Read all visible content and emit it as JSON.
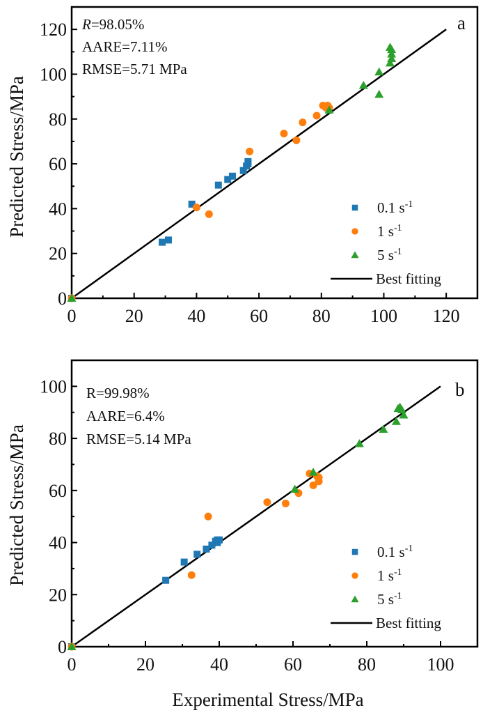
{
  "chart_data": [
    {
      "type": "scatter",
      "panel": "a",
      "xlabel": "",
      "ylabel": "Predicted Stress/MPa",
      "xlim": [
        0,
        130
      ],
      "ylim": [
        0,
        130
      ],
      "xticks": [
        0,
        20,
        40,
        60,
        80,
        100,
        120
      ],
      "yticks": [
        0,
        20,
        40,
        60,
        80,
        100,
        120
      ],
      "stats": [
        "R=98.05%",
        "AARE=7.11%",
        "RMSE=5.71 MPa"
      ],
      "stat_r_label": "R",
      "stat_r_value": "=98.05%",
      "legend_position": "bottom-right",
      "fit_line": {
        "name": "Best fitting",
        "from": [
          0,
          0
        ],
        "to": [
          120,
          120
        ],
        "color": "#000000"
      },
      "series": [
        {
          "name": "0.1 s-1",
          "label_base": "0.1 s",
          "label_sup": "-1",
          "marker": "square",
          "color": "#1f77b4",
          "points": [
            [
              0,
              0
            ],
            [
              29,
              25
            ],
            [
              31,
              26
            ],
            [
              38.5,
              42
            ],
            [
              47,
              50.5
            ],
            [
              50,
              53
            ],
            [
              51.5,
              54.5
            ],
            [
              55,
              57
            ],
            [
              56,
              59
            ],
            [
              56.5,
              60
            ],
            [
              56.5,
              61
            ]
          ]
        },
        {
          "name": "1 s-1",
          "label_base": "1 s",
          "label_sup": "-1",
          "marker": "circle",
          "color": "#ff7f0e",
          "points": [
            [
              0,
              0
            ],
            [
              40,
              40.5
            ],
            [
              44,
              37.5
            ],
            [
              57,
              65.5
            ],
            [
              68,
              73.5
            ],
            [
              72,
              70.5
            ],
            [
              74,
              78.5
            ],
            [
              78.5,
              81.5
            ],
            [
              80.5,
              86
            ],
            [
              81.5,
              85
            ],
            [
              82,
              86
            ],
            [
              82.5,
              85
            ]
          ]
        },
        {
          "name": "5 s-1",
          "label_base": "5 s",
          "label_sup": "-1",
          "marker": "triangle",
          "color": "#2ca02c",
          "points": [
            [
              0,
              0
            ],
            [
              82.5,
              84
            ],
            [
              93.5,
              95
            ],
            [
              98.5,
              91
            ],
            [
              98.5,
              101
            ],
            [
              102,
              105
            ],
            [
              102.5,
              107
            ],
            [
              102.5,
              109
            ],
            [
              102.5,
              111
            ],
            [
              102,
              112
            ]
          ]
        }
      ]
    },
    {
      "type": "scatter",
      "panel": "b",
      "xlabel": "Experimental Stress/MPa",
      "ylabel": "Predicted Stress/MPa",
      "xlim": [
        0,
        110
      ],
      "ylim": [
        0,
        110
      ],
      "xticks": [
        0,
        20,
        40,
        60,
        80,
        100
      ],
      "yticks": [
        0,
        20,
        40,
        60,
        80,
        100
      ],
      "stats": [
        "R=99.98%",
        "AARE=6.4%",
        "RMSE=5.14 MPa"
      ],
      "stat_r_label": "R",
      "stat_r_value": "=99.98%",
      "legend_position": "bottom-right",
      "fit_line": {
        "name": "Best fitting",
        "from": [
          0,
          0
        ],
        "to": [
          100,
          100
        ],
        "color": "#000000"
      },
      "series": [
        {
          "name": "0.1 s-1",
          "label_base": "0.1 s",
          "label_sup": "-1",
          "marker": "square",
          "color": "#1f77b4",
          "points": [
            [
              0,
              0
            ],
            [
              25.5,
              25.5
            ],
            [
              30.5,
              32.5
            ],
            [
              34,
              35.5
            ],
            [
              36.5,
              37.5
            ],
            [
              38,
              39
            ],
            [
              39,
              40.5
            ],
            [
              39.5,
              41
            ],
            [
              40,
              41
            ],
            [
              39.5,
              40
            ]
          ]
        },
        {
          "name": "1 s-1",
          "label_base": "1 s",
          "label_sup": "-1",
          "marker": "circle",
          "color": "#ff7f0e",
          "points": [
            [
              0,
              0
            ],
            [
              32.5,
              27.5
            ],
            [
              37,
              50
            ],
            [
              53,
              55.5
            ],
            [
              58,
              55
            ],
            [
              61.5,
              59
            ],
            [
              64.5,
              66.5
            ],
            [
              65.5,
              62
            ],
            [
              67,
              63.5
            ],
            [
              67,
              65
            ],
            [
              66.5,
              65.5
            ]
          ]
        },
        {
          "name": "5 s-1",
          "label_base": "5 s",
          "label_sup": "-1",
          "marker": "triangle",
          "color": "#2ca02c",
          "points": [
            [
              0,
              0
            ],
            [
              60.5,
              60.5
            ],
            [
              65.5,
              67
            ],
            [
              78,
              78
            ],
            [
              84.5,
              83.5
            ],
            [
              88,
              86.5
            ],
            [
              88.5,
              91.5
            ],
            [
              89,
              92
            ],
            [
              90,
              89
            ],
            [
              89.5,
              91
            ]
          ]
        }
      ]
    }
  ],
  "legend_fit_label": "Best fitting"
}
